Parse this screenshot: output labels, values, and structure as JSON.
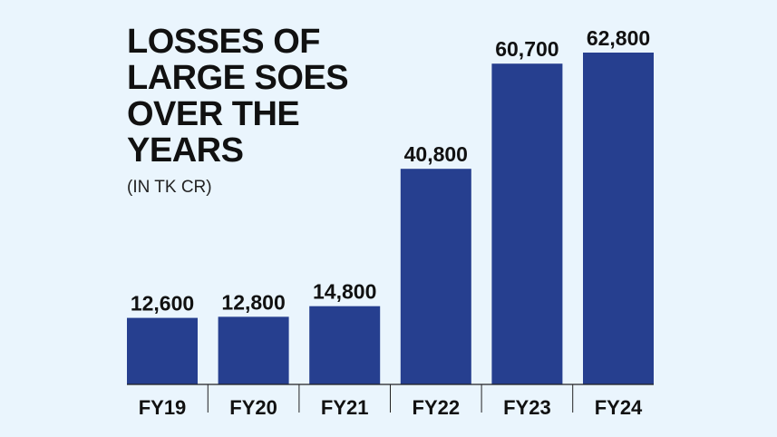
{
  "chart_data": {
    "type": "bar",
    "title_lines": [
      "LOSSES OF",
      "LARGE SOES",
      "OVER THE",
      "YEARS"
    ],
    "subtitle": "(IN TK CR)",
    "categories": [
      "FY19",
      "FY20",
      "FY21",
      "FY22",
      "FY23",
      "FY24"
    ],
    "values": [
      12600,
      12800,
      14800,
      40800,
      60700,
      62800
    ],
    "value_labels": [
      "12,600",
      "12,800",
      "14,800",
      "40,800",
      "60,700",
      "62,800"
    ],
    "ylim": [
      0,
      62800
    ],
    "grid": false,
    "bar_color": "#263f8f",
    "axis_color": "#222222"
  }
}
